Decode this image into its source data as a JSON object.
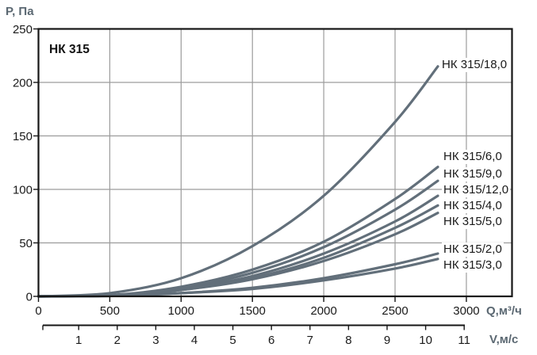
{
  "chart_data": {
    "type": "line",
    "title": "НК 315",
    "ylabel": "P, Па",
    "xlabel": "Q,м³/ч",
    "x2label": "V,м/с",
    "ylim": [
      0,
      250
    ],
    "xlim_q": [
      0,
      3320
    ],
    "y_ticks": [
      0,
      50,
      100,
      150,
      200,
      250
    ],
    "x_q_ticks": [
      0,
      500,
      1000,
      1500,
      2000,
      2500,
      3000
    ],
    "x_v_ticks": [
      1,
      2,
      3,
      4,
      5,
      6,
      7,
      8,
      9,
      10,
      11
    ],
    "grid": true,
    "legend_position": "inline-right",
    "x": [
      0,
      500,
      1000,
      1500,
      2000,
      2500,
      2800
    ],
    "series": [
      {
        "name": "НК 315/18,0",
        "values": [
          0,
          3,
          17,
          47,
          94,
          163,
          215
        ]
      },
      {
        "name": "НК 315/6,0",
        "values": [
          0,
          1,
          9,
          25,
          51,
          91,
          121
        ]
      },
      {
        "name": "НК 315/9,0",
        "values": [
          0,
          1,
          8,
          22,
          46,
          81,
          108
        ]
      },
      {
        "name": "НК 315/12,0",
        "values": [
          0,
          1,
          7,
          19,
          40,
          70,
          94
        ]
      },
      {
        "name": "НК 315/4,0",
        "values": [
          0,
          1,
          6,
          17,
          36,
          64,
          85
        ]
      },
      {
        "name": "НК 315/5,0",
        "values": [
          0,
          1,
          6,
          16,
          33,
          58,
          78
        ]
      },
      {
        "name": "НК 315/2,0",
        "values": [
          0,
          0.5,
          3,
          8,
          17,
          30,
          40
        ]
      },
      {
        "name": "НК 315/3,0",
        "values": [
          0,
          0.4,
          3,
          7,
          15,
          26,
          35
        ]
      }
    ],
    "colors": {
      "curve": "#626f7a",
      "grid": "#9c9c9c",
      "axis": "#161616",
      "tick_label": "#1a1a1a",
      "unit_label": "#5b6872",
      "background": "#ffffff"
    }
  }
}
